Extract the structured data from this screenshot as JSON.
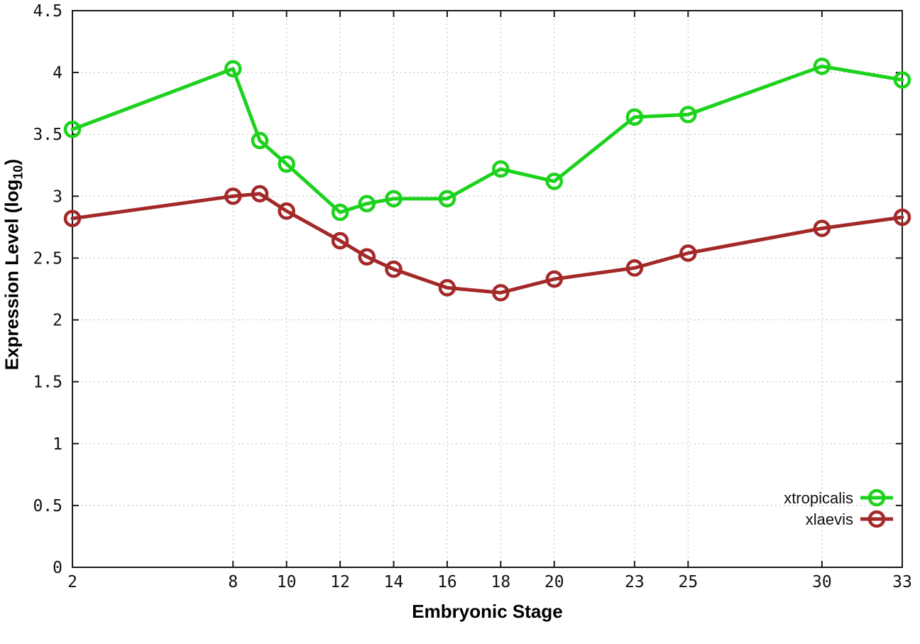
{
  "chart_data": {
    "type": "line",
    "x": [
      2,
      8,
      9,
      10,
      12,
      13,
      14,
      16,
      18,
      20,
      23,
      25,
      30,
      33
    ],
    "series": [
      {
        "name": "xtropicalis",
        "color": "#1dd21d",
        "values": [
          3.54,
          4.03,
          3.45,
          3.26,
          2.87,
          2.94,
          2.98,
          2.98,
          3.22,
          3.12,
          3.64,
          3.66,
          4.05,
          3.94
        ]
      },
      {
        "name": "xlaevis",
        "color": "#a32929",
        "values": [
          2.82,
          3.0,
          3.02,
          2.88,
          2.64,
          2.51,
          2.41,
          2.26,
          2.22,
          2.33,
          2.42,
          2.54,
          2.74,
          2.83
        ]
      }
    ],
    "title": "",
    "xlabel": "Embryonic Stage",
    "ylabel": "Expression Level (log10)",
    "xlim": [
      2,
      33
    ],
    "ylim": [
      0,
      4.5
    ],
    "x_tick_labels": [
      "2",
      "8",
      "10",
      "12",
      "14",
      "16",
      "18",
      "20",
      "23",
      "25",
      "30",
      "33"
    ],
    "x_tick_values": [
      2,
      8,
      10,
      12,
      14,
      16,
      18,
      20,
      23,
      25,
      30,
      33
    ],
    "y_tick_labels": [
      "0",
      "0.5",
      "1",
      "1.5",
      "2",
      "2.5",
      "3",
      "3.5",
      "4",
      "4.5"
    ],
    "y_tick_values": [
      0,
      0.5,
      1,
      1.5,
      2,
      2.5,
      3,
      3.5,
      4,
      4.5
    ],
    "grid": "dotted",
    "legend_position": "bottom-right",
    "marker": "open-circle"
  },
  "y_axis": {
    "label_main": "Expression Level (log",
    "label_subscript": "10",
    "label_close": ")"
  },
  "x_axis": {
    "title": "Embryonic Stage"
  },
  "colors": {
    "background": "#ffffff",
    "border": "#1a1a1a",
    "grid": "#bdbdbd",
    "text": "#111111",
    "series_green": "#1dd21d",
    "series_red": "#a32929"
  }
}
